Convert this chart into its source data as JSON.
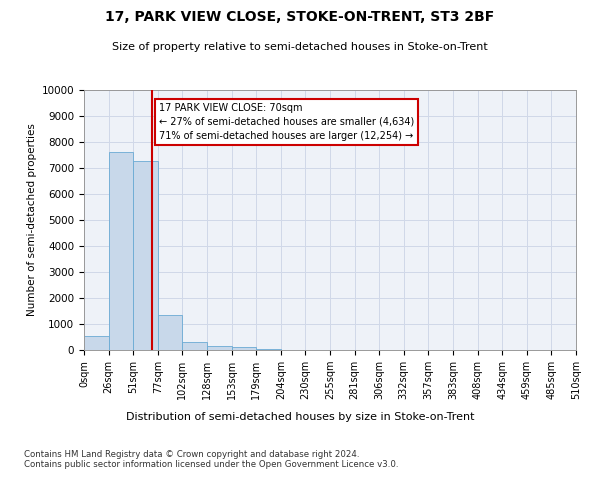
{
  "title": "17, PARK VIEW CLOSE, STOKE-ON-TRENT, ST3 2BF",
  "subtitle": "Size of property relative to semi-detached houses in Stoke-on-Trent",
  "xlabel": "Distribution of semi-detached houses by size in Stoke-on-Trent",
  "ylabel": "Number of semi-detached properties",
  "footer": "Contains HM Land Registry data © Crown copyright and database right 2024.\nContains public sector information licensed under the Open Government Licence v3.0.",
  "bar_color": "#c8d8ea",
  "bar_edge_color": "#6aaad4",
  "annotation_line1": "17 PARK VIEW CLOSE: 70sqm",
  "annotation_line2": "← 27% of semi-detached houses are smaller (4,634)",
  "annotation_line3": "71% of semi-detached houses are larger (12,254) →",
  "property_sqm": 70,
  "bin_edges": [
    0,
    25.5,
    51,
    76.5,
    102,
    127.5,
    153,
    178.5,
    204,
    229.5,
    255,
    280.5,
    306,
    331.5,
    357,
    382.5,
    408,
    433.5,
    459,
    484.5,
    510
  ],
  "bin_labels": [
    "0sqm",
    "26sqm",
    "51sqm",
    "77sqm",
    "102sqm",
    "128sqm",
    "153sqm",
    "179sqm",
    "204sqm",
    "230sqm",
    "255sqm",
    "281sqm",
    "306sqm",
    "332sqm",
    "357sqm",
    "383sqm",
    "408sqm",
    "434sqm",
    "459sqm",
    "485sqm",
    "510sqm"
  ],
  "bar_heights": [
    550,
    7600,
    7250,
    1350,
    300,
    150,
    100,
    50,
    15,
    5,
    2,
    1,
    0,
    0,
    0,
    0,
    0,
    0,
    0,
    0
  ],
  "ylim": [
    0,
    10000
  ],
  "grid_color": "#d0d8e8",
  "background_color": "#eef2f8",
  "red_line_color": "#cc0000",
  "annotation_box_color": "#cc0000",
  "yticks": [
    0,
    1000,
    2000,
    3000,
    4000,
    5000,
    6000,
    7000,
    8000,
    9000,
    10000
  ]
}
